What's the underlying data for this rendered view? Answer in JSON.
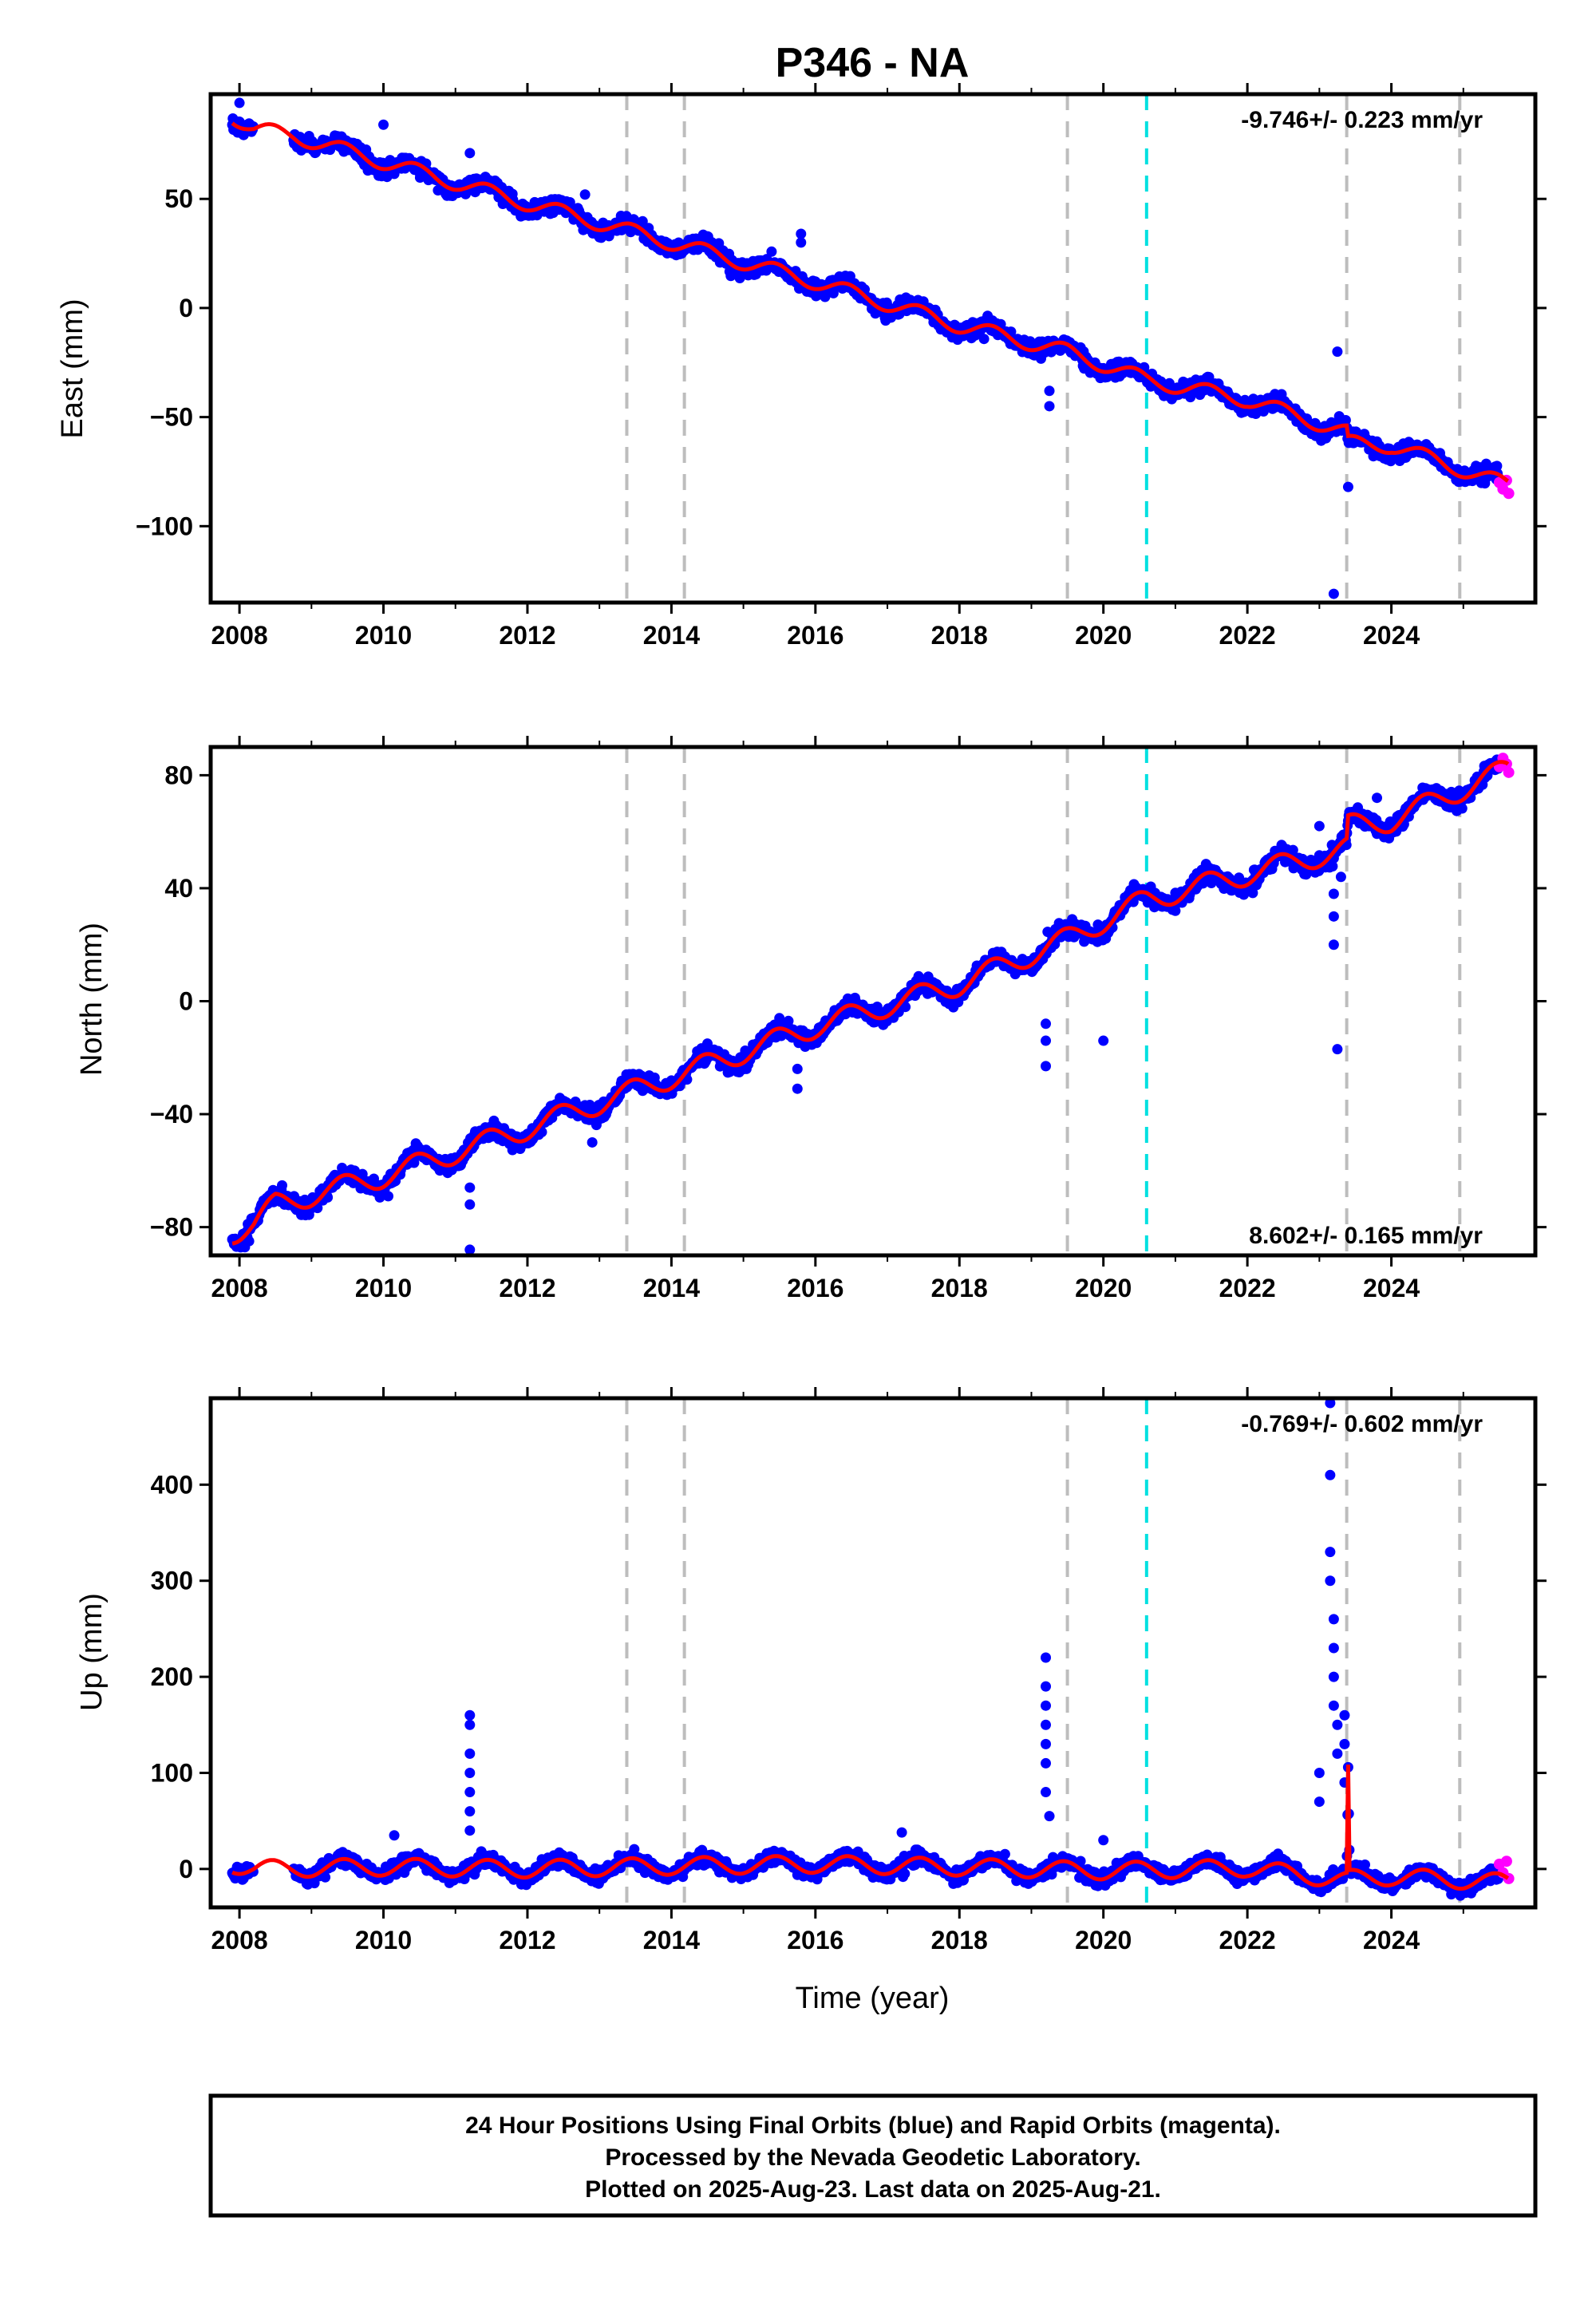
{
  "chart_data": {
    "type": "scatter",
    "title": "P346 - NA",
    "xlabel": "Time (year)",
    "xlim": [
      2007.6,
      2026.0
    ],
    "x_ticks": [
      "2008",
      "2010",
      "2012",
      "2014",
      "2016",
      "2018",
      "2020",
      "2022",
      "2024"
    ],
    "colors": {
      "final_orbits": "#0000ff",
      "rapid_orbits": "#ff00ff",
      "model": "#ff0000",
      "equipment_change": "#bdbdbd",
      "earthquake": "#00e0e0"
    },
    "event_lines": {
      "gray": [
        2013.38,
        2014.18,
        2019.5,
        2023.38,
        2024.95
      ],
      "cyan": [
        2020.6
      ]
    },
    "panels": [
      {
        "name": "east",
        "ylabel": "East (mm)",
        "ylim": [
          -135,
          98
        ],
        "y_ticks": [
          50,
          0,
          -50,
          -100
        ],
        "y_tick_labels": [
          "50",
          "0",
          "−50",
          "−100"
        ],
        "rate_text": "-9.746+/- 0.223 mm/yr",
        "rate_position": "top-right",
        "velocity_mm_per_yr": -9.746,
        "gaps": [
          [
            2008.2,
            2008.75
          ]
        ],
        "trend": [
          [
            2007.9,
            88
          ],
          [
            2008.2,
            82
          ],
          [
            2008.75,
            79
          ],
          [
            2010,
            67
          ],
          [
            2012,
            48
          ],
          [
            2014,
            30
          ],
          [
            2016,
            12
          ],
          [
            2018,
            -8
          ],
          [
            2019.5,
            -20
          ],
          [
            2020.6,
            -33
          ],
          [
            2022,
            -42
          ],
          [
            2023.38,
            -57
          ],
          [
            2023.4,
            -62
          ],
          [
            2024,
            -63
          ],
          [
            2025.6,
            -81
          ]
        ],
        "seasonal_amp": 3.5,
        "noise": 2.5,
        "outliers": [
          [
            2008.0,
            94
          ],
          [
            2010.0,
            84
          ],
          [
            2011.2,
            71
          ],
          [
            2012.8,
            52
          ],
          [
            2015.8,
            34
          ],
          [
            2015.8,
            30
          ],
          [
            2019.25,
            -45
          ],
          [
            2019.25,
            -38
          ],
          [
            2023.25,
            -20
          ],
          [
            2023.4,
            -82
          ],
          [
            2023.2,
            -131
          ]
        ],
        "rapid": [
          [
            2025.5,
            -80
          ],
          [
            2025.55,
            -83
          ],
          [
            2025.6,
            -79
          ],
          [
            2025.63,
            -85
          ]
        ]
      },
      {
        "name": "north",
        "ylabel": "North (mm)",
        "ylim": [
          -90,
          90
        ],
        "y_ticks": [
          80,
          40,
          0,
          -40,
          -80
        ],
        "y_tick_labels": [
          "80",
          "40",
          "0",
          "−40",
          "−80"
        ],
        "rate_text": "8.602+/- 0.165 mm/yr",
        "rate_position": "bottom-right",
        "velocity_mm_per_yr": 8.602,
        "gaps": [],
        "trend": [
          [
            2007.9,
            -82
          ],
          [
            2008.2,
            -79
          ],
          [
            2008.5,
            -72
          ],
          [
            2010,
            -62
          ],
          [
            2012,
            -45
          ],
          [
            2014,
            -27
          ],
          [
            2016,
            -9
          ],
          [
            2018,
            6
          ],
          [
            2019.5,
            22
          ],
          [
            2020.6,
            36
          ],
          [
            2022,
            45
          ],
          [
            2023.38,
            54
          ],
          [
            2023.4,
            62
          ],
          [
            2024,
            64
          ],
          [
            2025.6,
            82
          ]
        ],
        "seasonal_amp": 4.0,
        "noise": 2.0,
        "outliers": [
          [
            2011.2,
            -66
          ],
          [
            2011.2,
            -72
          ],
          [
            2011.2,
            -88
          ],
          [
            2012.9,
            -50
          ],
          [
            2015.75,
            -24
          ],
          [
            2015.75,
            -31
          ],
          [
            2019.2,
            -8
          ],
          [
            2019.2,
            -14
          ],
          [
            2019.2,
            -23
          ],
          [
            2020.0,
            -14
          ],
          [
            2021.0,
            32
          ],
          [
            2023.2,
            38
          ],
          [
            2023.2,
            30
          ],
          [
            2023.2,
            20
          ],
          [
            2023.25,
            -17
          ],
          [
            2023.3,
            44
          ],
          [
            2023.0,
            62
          ],
          [
            2023.8,
            72
          ],
          [
            2024.7,
            74
          ]
        ],
        "rapid": [
          [
            2025.5,
            83
          ],
          [
            2025.55,
            86
          ],
          [
            2025.6,
            84
          ],
          [
            2025.63,
            81
          ]
        ]
      },
      {
        "name": "up",
        "ylabel": "Up (mm)",
        "ylim": [
          -40,
          490
        ],
        "y_ticks": [
          400,
          300,
          200,
          100,
          0
        ],
        "y_tick_labels": [
          "400",
          "300",
          "200",
          "100",
          "0"
        ],
        "rate_text": "-0.769+/- 0.602 mm/yr",
        "rate_position": "top-right",
        "velocity_mm_per_yr": -0.769,
        "gaps": [
          [
            2008.2,
            2008.75
          ]
        ],
        "trend": [
          [
            2007.9,
            5
          ],
          [
            2008.2,
            0
          ],
          [
            2010,
            2
          ],
          [
            2012,
            0
          ],
          [
            2014,
            3
          ],
          [
            2016,
            5
          ],
          [
            2018,
            2
          ],
          [
            2020,
            -2
          ],
          [
            2022,
            1
          ],
          [
            2023.38,
            -12
          ],
          [
            2023.4,
            100
          ],
          [
            2023.42,
            -10
          ],
          [
            2024,
            -8
          ],
          [
            2025.6,
            -14
          ]
        ],
        "seasonal_amp": 9.0,
        "noise": 5.0,
        "outliers": [
          [
            2011.2,
            160
          ],
          [
            2011.2,
            150
          ],
          [
            2011.2,
            120
          ],
          [
            2011.2,
            100
          ],
          [
            2011.2,
            80
          ],
          [
            2011.2,
            60
          ],
          [
            2011.2,
            40
          ],
          [
            2010.15,
            35
          ],
          [
            2017.2,
            38
          ],
          [
            2019.2,
            220
          ],
          [
            2019.2,
            190
          ],
          [
            2019.2,
            170
          ],
          [
            2019.2,
            150
          ],
          [
            2019.2,
            130
          ],
          [
            2019.2,
            110
          ],
          [
            2019.2,
            80
          ],
          [
            2019.25,
            55
          ],
          [
            2020.0,
            30
          ],
          [
            2023.15,
            485
          ],
          [
            2023.15,
            410
          ],
          [
            2023.15,
            330
          ],
          [
            2023.15,
            300
          ],
          [
            2023.2,
            260
          ],
          [
            2023.2,
            230
          ],
          [
            2023.2,
            200
          ],
          [
            2023.2,
            170
          ],
          [
            2023.25,
            150
          ],
          [
            2023.25,
            120
          ],
          [
            2023.0,
            100
          ],
          [
            2023.0,
            70
          ],
          [
            2023.35,
            160
          ],
          [
            2023.35,
            130
          ],
          [
            2023.35,
            90
          ]
        ],
        "rapid": [
          [
            2025.5,
            5
          ],
          [
            2025.55,
            -4
          ],
          [
            2025.6,
            8
          ],
          [
            2025.63,
            -10
          ]
        ]
      }
    ]
  },
  "footer": {
    "line1": "24 Hour Positions Using Final Orbits (blue) and Rapid Orbits (magenta).",
    "line2": "Processed by the Nevada Geodetic Laboratory.",
    "line3": "Plotted on 2025-Aug-23. Last data on 2025-Aug-21."
  }
}
